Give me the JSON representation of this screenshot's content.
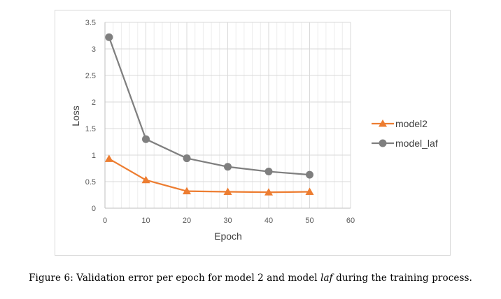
{
  "chart_data": {
    "type": "line",
    "xlabel": "Epoch",
    "ylabel": "Loss",
    "xlim": [
      0,
      60
    ],
    "ylim": [
      0,
      3.5
    ],
    "x_ticks": [
      "0",
      "10",
      "20",
      "30",
      "40",
      "50",
      "60"
    ],
    "y_ticks": [
      "0",
      "0.5",
      "1",
      "1.5",
      "2",
      "2.5",
      "3",
      "3.5"
    ],
    "grid": true,
    "legend_position": "right",
    "series": [
      {
        "name": "model2",
        "color": "#ED7D31",
        "marker": "triangle",
        "x": [
          1,
          10,
          20,
          30,
          40,
          50
        ],
        "values": [
          0.93,
          0.53,
          0.32,
          0.31,
          0.3,
          0.31
        ]
      },
      {
        "name": "model_laf",
        "color": "#7F7F7F",
        "marker": "circle",
        "x": [
          1,
          10,
          20,
          30,
          40,
          50
        ],
        "values": [
          3.22,
          1.3,
          0.94,
          0.78,
          0.69,
          0.63
        ]
      }
    ]
  },
  "caption": {
    "prefix": "Figure 6: Validation error per epoch for model 2 and model ",
    "italic": "laf",
    "suffix": " during the training process."
  }
}
